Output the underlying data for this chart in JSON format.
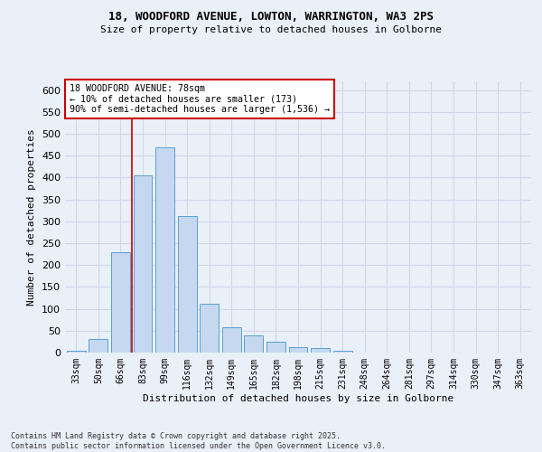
{
  "title_line1": "18, WOODFORD AVENUE, LOWTON, WARRINGTON, WA3 2PS",
  "title_line2": "Size of property relative to detached houses in Golborne",
  "xlabel": "Distribution of detached houses by size in Golborne",
  "ylabel": "Number of detached properties",
  "categories": [
    "33sqm",
    "50sqm",
    "66sqm",
    "83sqm",
    "99sqm",
    "116sqm",
    "132sqm",
    "149sqm",
    "165sqm",
    "182sqm",
    "198sqm",
    "215sqm",
    "231sqm",
    "248sqm",
    "264sqm",
    "281sqm",
    "297sqm",
    "314sqm",
    "330sqm",
    "347sqm",
    "363sqm"
  ],
  "values": [
    5,
    30,
    230,
    405,
    470,
    313,
    111,
    57,
    40,
    25,
    13,
    11,
    4,
    0,
    0,
    0,
    0,
    0,
    0,
    0,
    0
  ],
  "bar_color": "#c5d8f0",
  "bar_edge_color": "#5a9fd4",
  "annotation_text": "18 WOODFORD AVENUE: 78sqm\n← 10% of detached houses are smaller (173)\n90% of semi-detached houses are larger (1,536) →",
  "vline_x_index": 2.5,
  "annotation_box_color": "#ffffff",
  "annotation_box_edge_color": "#cc0000",
  "vline_color": "#cc0000",
  "grid_color": "#d0d8e8",
  "background_color": "#eaf0f8",
  "footer_text": "Contains HM Land Registry data © Crown copyright and database right 2025.\nContains public sector information licensed under the Open Government Licence v3.0.",
  "ylim": [
    0,
    620
  ],
  "yticks": [
    0,
    50,
    100,
    150,
    200,
    250,
    300,
    350,
    400,
    450,
    500,
    550,
    600
  ]
}
